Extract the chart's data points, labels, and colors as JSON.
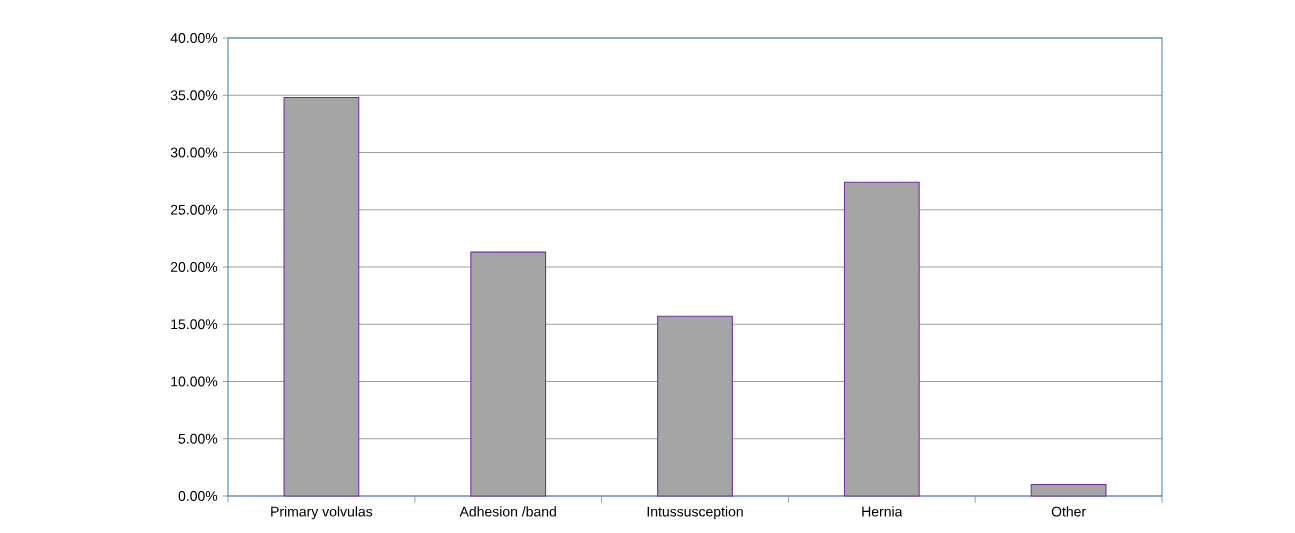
{
  "chart_data": {
    "type": "bar",
    "categories": [
      "Primary volvulas",
      "Adhesion /band",
      "Intussusception",
      "Hernia",
      "Other"
    ],
    "values": [
      34.8,
      21.3,
      15.7,
      27.4,
      1.0
    ],
    "color": "#a5a5a5",
    "ylim": [
      0,
      40
    ],
    "yticks": [
      {
        "value": 0,
        "label": "0.00%"
      },
      {
        "value": 5,
        "label": "5.00%"
      },
      {
        "value": 10,
        "label": "10.00%"
      },
      {
        "value": 15,
        "label": "15.00%"
      },
      {
        "value": 20,
        "label": "20.00%"
      },
      {
        "value": 25,
        "label": "25.00%"
      },
      {
        "value": 30,
        "label": "30.00%"
      },
      {
        "value": 35,
        "label": "35.00%"
      },
      {
        "value": 40,
        "label": "40.00%"
      }
    ],
    "grid": "y"
  }
}
